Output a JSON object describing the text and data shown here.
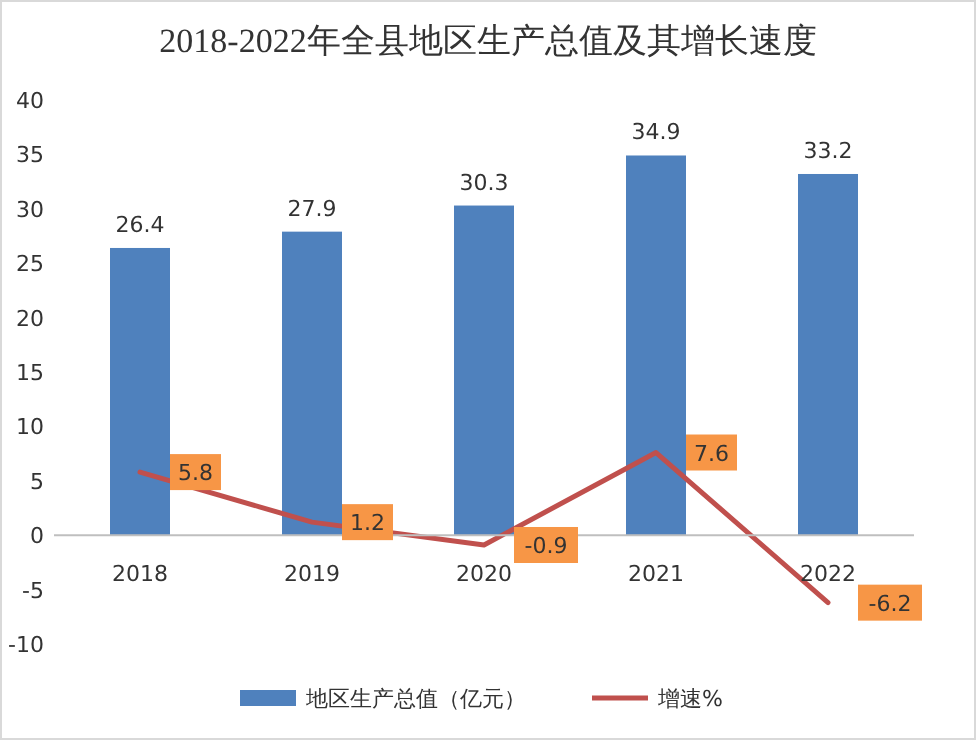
{
  "chart_data": {
    "type": "bar",
    "title": "2018-2022年全县地区生产总值及其增长速度",
    "categories": [
      "2018",
      "2019",
      "2020",
      "2021",
      "2022"
    ],
    "series": [
      {
        "name": "地区生产总值（亿元）",
        "color": "#4f81bd",
        "values": [
          26.4,
          27.9,
          30.3,
          34.9,
          33.2
        ]
      },
      {
        "name": "增速%",
        "type": "line",
        "color": "#c0504d",
        "values": [
          5.8,
          1.2,
          -0.9,
          7.6,
          -6.2
        ]
      }
    ],
    "ylim": [
      -10,
      40
    ],
    "yticks": [
      -10,
      -5,
      0,
      5,
      10,
      15,
      20,
      25,
      30,
      35,
      40
    ],
    "data_labels": true,
    "legend": "bottom",
    "grid": false
  }
}
